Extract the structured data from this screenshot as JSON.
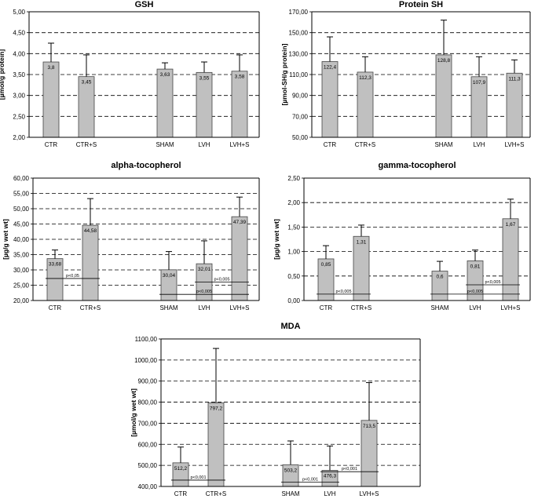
{
  "charts": [
    {
      "type": "bar",
      "title": "GSH",
      "ylabel": "[µmol/g protein]",
      "ylim": [
        2.0,
        5.0
      ],
      "yticks": [
        "2,00",
        "2,50",
        "3,00",
        "3,50",
        "4,00",
        "4,50",
        "5,00"
      ],
      "categories": [
        "CTR",
        "CTR+S",
        "SHAM",
        "LVH",
        "LVH+S"
      ],
      "values": [
        3.8,
        3.45,
        3.63,
        3.55,
        3.58
      ],
      "value_labels": [
        "3,8",
        "3,45",
        "3,63",
        "3,55",
        "3,58"
      ],
      "errors": [
        4.25,
        3.97,
        3.78,
        3.8,
        3.97
      ],
      "pvalues": [],
      "grid": true
    },
    {
      "type": "bar",
      "title": "Protein SH",
      "ylabel": "[µmol-SH/g protein]",
      "ylim": [
        50,
        170
      ],
      "yticks": [
        "50,00",
        "70,00",
        "90,00",
        "110,00",
        "130,00",
        "150,00",
        "170,00"
      ],
      "categories": [
        "CTR",
        "CTR+S",
        "SHAM",
        "LVH",
        "LVH+S"
      ],
      "values": [
        122.4,
        112.3,
        128.8,
        107.9,
        111.3
      ],
      "value_labels": [
        "122,4",
        "112,3",
        "128,8",
        "107,9",
        "111,3"
      ],
      "errors": [
        146,
        127,
        162,
        127,
        124
      ],
      "pvalues": [],
      "grid": true
    },
    {
      "type": "bar",
      "title": "alpha-tocopherol",
      "ylabel": "[µg/g wet wt]",
      "ylim": [
        20,
        60
      ],
      "yticks": [
        "20,00",
        "25,00",
        "30,00",
        "35,00",
        "40,00",
        "45,00",
        "50,00",
        "55,00",
        "60,00"
      ],
      "categories": [
        "CTR",
        "CTR+S",
        "SHAM",
        "LVH",
        "LVH+S"
      ],
      "values": [
        33.68,
        44.58,
        30.04,
        32.01,
        47.39
      ],
      "value_labels": [
        "33,68",
        "44,58",
        "30,04",
        "32,01",
        "47,39"
      ],
      "errors": [
        36.5,
        53.3,
        36.0,
        39.5,
        53.8
      ],
      "pvalues": [
        {
          "text": "p<0,05",
          "from": 0,
          "to": 1,
          "y": 27.2
        },
        {
          "text": "p<0,005",
          "from": 2,
          "to": 4,
          "y": 22.0
        },
        {
          "text": "p<0,005",
          "from": 3,
          "to": 4,
          "y": 26.0
        }
      ],
      "grid": true
    },
    {
      "type": "bar",
      "title": "gamma-tocopherol",
      "ylabel": "[µg/g wet wt]",
      "ylim": [
        0,
        2.5
      ],
      "yticks": [
        "0,00",
        "0,50",
        "1,00",
        "1,50",
        "2,00",
        "2,50"
      ],
      "categories": [
        "CTR",
        "CTR+S",
        "SHAM",
        "LVH",
        "LVH+S"
      ],
      "values": [
        0.85,
        1.31,
        0.6,
        0.81,
        1.67
      ],
      "value_labels": [
        "0,85",
        "1,31",
        "0,6",
        "0,81",
        "1,67"
      ],
      "errors": [
        1.12,
        1.54,
        0.8,
        1.03,
        2.07
      ],
      "pvalues": [
        {
          "text": "p<0,005",
          "from": 0,
          "to": 1,
          "y": 0.13
        },
        {
          "text": "p<0,005",
          "from": 2,
          "to": 4,
          "y": 0.13
        },
        {
          "text": "p<0,005",
          "from": 3,
          "to": 4,
          "y": 0.32
        }
      ],
      "grid": true
    },
    {
      "type": "bar",
      "title": "MDA",
      "ylabel": "[µmol/g wet wt]",
      "ylim": [
        400,
        1100
      ],
      "yticks": [
        "400,00",
        "500,00",
        "600,00",
        "700,00",
        "800,00",
        "900,00",
        "1000,00",
        "1100,00"
      ],
      "categories": [
        "CTR",
        "CTR+S",
        "SHAM",
        "LVH",
        "LVH+S"
      ],
      "values": [
        512.2,
        797.2,
        503.2,
        476.3,
        713.5
      ],
      "value_labels": [
        "512,2",
        "797,2",
        "503,2",
        "476,3",
        "713,5"
      ],
      "errors": [
        587,
        1055,
        616,
        592,
        893
      ],
      "pvalues": [
        {
          "text": "p<0,001",
          "from": 0,
          "to": 1,
          "y": 430
        },
        {
          "text": "p<0,001",
          "from": 2,
          "to": 3,
          "y": 420
        },
        {
          "text": "p<0,001",
          "from": 3,
          "to": 4,
          "y": 470
        }
      ],
      "grid": true
    }
  ],
  "style": {
    "bar_color": "#c0c0c0",
    "bar_border": "#444444",
    "grid_color": "#000000"
  }
}
